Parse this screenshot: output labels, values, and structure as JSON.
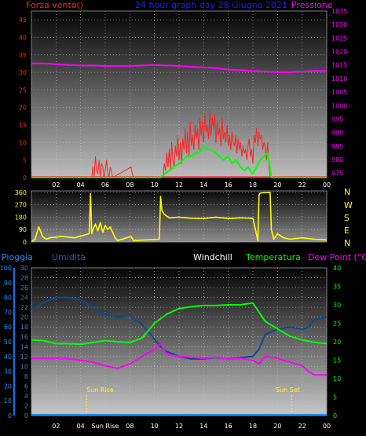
{
  "colors": {
    "wind": "#ff2020",
    "gust": "#00ff00",
    "pressure": "#ff00ff",
    "direction": "#ffff00",
    "rain": "#1e90ff",
    "rain_axis": "#1e6fd8",
    "humidity": "#0b4a8c",
    "temperature": "#00ff00",
    "dewpoint": "#ff00ff",
    "title": "#2020ff",
    "white": "#ffffff"
  },
  "header": {
    "wind_label": "Forza vento()",
    "title": "24 hour graph day 28 Giugno 2021",
    "pressure_label": "Pressione"
  },
  "compass": [
    "N",
    "W",
    "S",
    "E",
    "N"
  ],
  "legend": {
    "rain": "Pioggia",
    "humidity": "Umidità",
    "windchill": "Windchill",
    "temperature": "Temperatura",
    "dewpoint": "Dew Point (°C)"
  },
  "sun": {
    "rise": "Sun Rise",
    "set": "Sun Set"
  },
  "chart_data": [
    {
      "type": "line",
      "name": "wind-pressure",
      "x_ticks": [
        "02",
        "04",
        "06",
        "08",
        "10",
        "12",
        "14",
        "16",
        "18",
        "20",
        "22",
        "00"
      ],
      "y_left": {
        "ticks": [
          0,
          5,
          10,
          15,
          20,
          25,
          30,
          35,
          40,
          45
        ],
        "ylim": [
          0,
          47.5
        ],
        "label": "Forza vento()"
      },
      "y_right": {
        "ticks": [
          975,
          980,
          985,
          990,
          995,
          1000,
          1005,
          1010,
          1015,
          1020,
          1025,
          1030,
          1035
        ],
        "ylim": [
          973.3,
          1035
        ],
        "label": "Pressione"
      },
      "xlim": [
        0,
        24
      ],
      "series": [
        {
          "name": "Pressione",
          "axis": "right",
          "x": [
            0,
            1,
            2,
            3,
            4,
            5,
            6,
            7,
            8,
            9,
            10,
            11,
            12,
            13,
            14,
            15,
            16,
            17,
            18,
            19,
            20,
            21,
            22,
            23,
            24
          ],
          "y": [
            1015.6,
            1015.6,
            1015.3,
            1015.0,
            1014.8,
            1014.8,
            1014.6,
            1014.6,
            1014.6,
            1014.8,
            1015.0,
            1014.8,
            1014.6,
            1014.3,
            1014.1,
            1013.8,
            1013.3,
            1013.1,
            1012.8,
            1012.6,
            1012.3,
            1012.3,
            1012.6,
            1012.8,
            1012.8
          ]
        },
        {
          "name": "wind",
          "axis": "left",
          "x": [
            4.9,
            5.0,
            5.1,
            5.2,
            5.3,
            5.4,
            5.5,
            5.6,
            5.7,
            5.8,
            5.9,
            6.0,
            6.1,
            6.2,
            6.3,
            6.4,
            6.5,
            6.6,
            8.1,
            8.2,
            8.3,
            10.7,
            10.8,
            10.9,
            11.0,
            11.1,
            11.2,
            11.3,
            11.4,
            11.5,
            11.6,
            11.7,
            11.8,
            11.9,
            12.0,
            12.1,
            12.2,
            12.3,
            12.4,
            12.5,
            12.6,
            12.7,
            12.8,
            12.9,
            13.0,
            13.1,
            13.2,
            13.3,
            13.4,
            13.5,
            13.6,
            13.7,
            13.8,
            13.9,
            14.0,
            14.1,
            14.2,
            14.3,
            14.4,
            14.5,
            14.6,
            14.7,
            14.8,
            14.9,
            15.0,
            15.1,
            15.2,
            15.3,
            15.4,
            15.5,
            15.6,
            15.7,
            15.8,
            15.9,
            16.0,
            16.1,
            16.2,
            16.3,
            16.4,
            16.5,
            16.6,
            16.7,
            16.8,
            16.9,
            17.0,
            17.1,
            17.2,
            17.3,
            17.4,
            17.5,
            17.6,
            17.7,
            17.8,
            17.9,
            18.0,
            18.1,
            18.2,
            18.3,
            18.4,
            18.5,
            18.6,
            18.7,
            18.8,
            18.9,
            19.0,
            19.1,
            19.2,
            19.3,
            19.4,
            19.5
          ],
          "y": [
            0,
            3,
            0,
            6,
            2,
            1,
            5,
            0,
            4,
            3,
            0,
            2,
            5,
            1,
            0,
            3,
            2,
            0,
            3,
            1,
            0,
            0,
            4,
            2,
            7,
            3,
            8,
            2,
            10,
            5,
            3,
            9,
            6,
            12,
            5,
            10,
            4,
            11,
            8,
            14,
            7,
            13,
            6,
            16,
            9,
            12,
            8,
            15,
            11,
            14,
            8,
            17,
            12,
            16,
            10,
            18,
            13,
            15,
            11,
            19,
            12,
            17,
            14,
            18,
            10,
            16,
            12,
            14,
            9,
            17,
            11,
            13,
            10,
            15,
            9,
            12,
            8,
            13,
            10,
            9,
            12,
            7,
            11,
            8,
            10,
            6,
            9,
            7,
            8,
            5,
            9,
            11,
            6,
            8,
            4,
            12,
            10,
            14,
            9,
            13,
            11,
            12,
            8,
            10,
            9,
            5,
            10,
            3,
            0,
            0
          ]
        },
        {
          "name": "gust",
          "axis": "left",
          "x": [
            0,
            10.5,
            10.8,
            11.2,
            11.6,
            12.0,
            12.3,
            12.6,
            13.0,
            13.3,
            13.6,
            14.0,
            14.3,
            14.6,
            15.0,
            15.3,
            15.6,
            16.0,
            16.3,
            16.6,
            17.0,
            17.3,
            17.6,
            18.0,
            18.3,
            18.6,
            18.9,
            19.2,
            19.5,
            24
          ],
          "y": [
            0,
            0,
            1,
            2,
            3,
            4,
            5,
            6,
            6,
            7,
            7,
            9,
            8,
            8,
            7,
            6,
            5,
            6,
            4,
            5,
            3,
            2,
            3,
            1,
            3,
            5,
            6,
            7,
            0,
            0
          ]
        }
      ]
    },
    {
      "type": "line",
      "name": "wind-direction",
      "x_ticks": [],
      "y_ticks": [
        0,
        90,
        180,
        270,
        360
      ],
      "ylim": [
        0,
        370
      ],
      "right_labels": [
        "N",
        "W",
        "S",
        "E",
        "N"
      ],
      "series": [
        {
          "name": "direction",
          "x": [
            0,
            0.3,
            0.6,
            0.9,
            1.2,
            1.5,
            2.5,
            3.5,
            4.7,
            4.8,
            4.9,
            5.0,
            5.2,
            5.4,
            5.6,
            5.8,
            6.0,
            6.2,
            6.4,
            6.8,
            7.0,
            8.1,
            8.3,
            10.4,
            10.5,
            10.6,
            10.8,
            11.2,
            12.0,
            13.0,
            14.0,
            15.0,
            16.0,
            17.0,
            18.0,
            18.4,
            18.5,
            18.6,
            19.4,
            19.5,
            19.7,
            20.0,
            20.5,
            21.0,
            21.5,
            22.0,
            23.0,
            24.0
          ],
          "y": [
            0,
            20,
            110,
            40,
            20,
            30,
            40,
            30,
            60,
            350,
            60,
            90,
            130,
            80,
            140,
            70,
            120,
            90,
            110,
            30,
            10,
            40,
            10,
            20,
            330,
            230,
            200,
            175,
            180,
            172,
            170,
            180,
            170,
            175,
            172,
            10,
            340,
            355,
            360,
            90,
            20,
            60,
            30,
            20,
            25,
            30,
            20,
            15
          ]
        }
      ]
    },
    {
      "type": "line",
      "name": "temperature-humidity",
      "x_ticks": [
        "02",
        "04",
        "Sun Rise",
        "08",
        "10",
        "12",
        "14",
        "16",
        "18",
        "20",
        "22",
        "00"
      ],
      "y_left_rain": {
        "ticks": [
          0,
          10,
          20,
          30,
          40,
          50,
          60,
          70,
          80,
          90,
          100
        ],
        "ylim": [
          0,
          100
        ],
        "label": "Pioggia"
      },
      "y_left_humidity": {
        "ticks": [
          0,
          2,
          4,
          6,
          8,
          10,
          12,
          14,
          16,
          18,
          20,
          22,
          24,
          26,
          28,
          30
        ],
        "ylim": [
          0,
          30
        ],
        "label": "Umidità"
      },
      "y_right": {
        "ticks": [
          0,
          5,
          10,
          15,
          20,
          25,
          30,
          35,
          40
        ],
        "ylim": [
          0,
          40
        ],
        "label": "Temperatura"
      },
      "series": [
        {
          "name": "Temperatura",
          "axis": "right",
          "x": [
            0,
            1,
            2,
            3,
            4,
            5,
            6,
            7,
            8,
            9,
            10,
            11,
            12,
            13,
            14,
            15,
            16,
            17,
            18,
            18.5,
            19,
            20,
            21,
            22,
            23,
            24
          ],
          "y": [
            20.5,
            20.3,
            19.5,
            19.5,
            19.3,
            19.8,
            20.3,
            20.0,
            19.8,
            21.0,
            25.0,
            27.5,
            29.0,
            29.5,
            29.8,
            29.8,
            30.0,
            30.0,
            30.5,
            28.0,
            25.5,
            23.5,
            21.5,
            20.5,
            19.8,
            19.5
          ]
        },
        {
          "name": "Dew Point",
          "axis": "right",
          "x": [
            0,
            1,
            2,
            3,
            4,
            5,
            6,
            7,
            8,
            9,
            10,
            10.5,
            11,
            12,
            13,
            14,
            15,
            16,
            17,
            18,
            18.5,
            19,
            20,
            21,
            22,
            22.5,
            23,
            24
          ],
          "y": [
            15.5,
            15.5,
            15.5,
            15.4,
            15.0,
            14.5,
            13.5,
            12.8,
            14.0,
            16.0,
            18.0,
            19.5,
            16.5,
            16.0,
            15.8,
            15.5,
            15.8,
            15.3,
            15.5,
            15.0,
            14.0,
            16.0,
            15.5,
            14.5,
            13.5,
            12.0,
            11.0,
            11.0
          ]
        },
        {
          "name": "Umidità",
          "axis": "left_humidity",
          "x": [
            0,
            1,
            2,
            3,
            4,
            5,
            6,
            7,
            8,
            9,
            10,
            10.5,
            11,
            11.5,
            12,
            13,
            14,
            15,
            16,
            17,
            18,
            18.5,
            19,
            19.5,
            20,
            21,
            22,
            22.5,
            23,
            24
          ],
          "y": [
            21.5,
            23.0,
            24.0,
            24.0,
            23.5,
            22.0,
            20.5,
            20.0,
            20.3,
            18.5,
            15.5,
            14.0,
            13.0,
            12.5,
            12.0,
            11.5,
            11.5,
            11.8,
            11.5,
            11.8,
            12.0,
            13.5,
            16.5,
            17.0,
            17.5,
            18.0,
            17.5,
            18.0,
            19.5,
            20.0
          ]
        },
        {
          "name": "Pioggia",
          "axis": "left_rain",
          "x": [
            0,
            24
          ],
          "y": [
            0,
            0
          ]
        }
      ],
      "sun_rise_x": 4.5,
      "sun_set_x": 21.15
    }
  ]
}
